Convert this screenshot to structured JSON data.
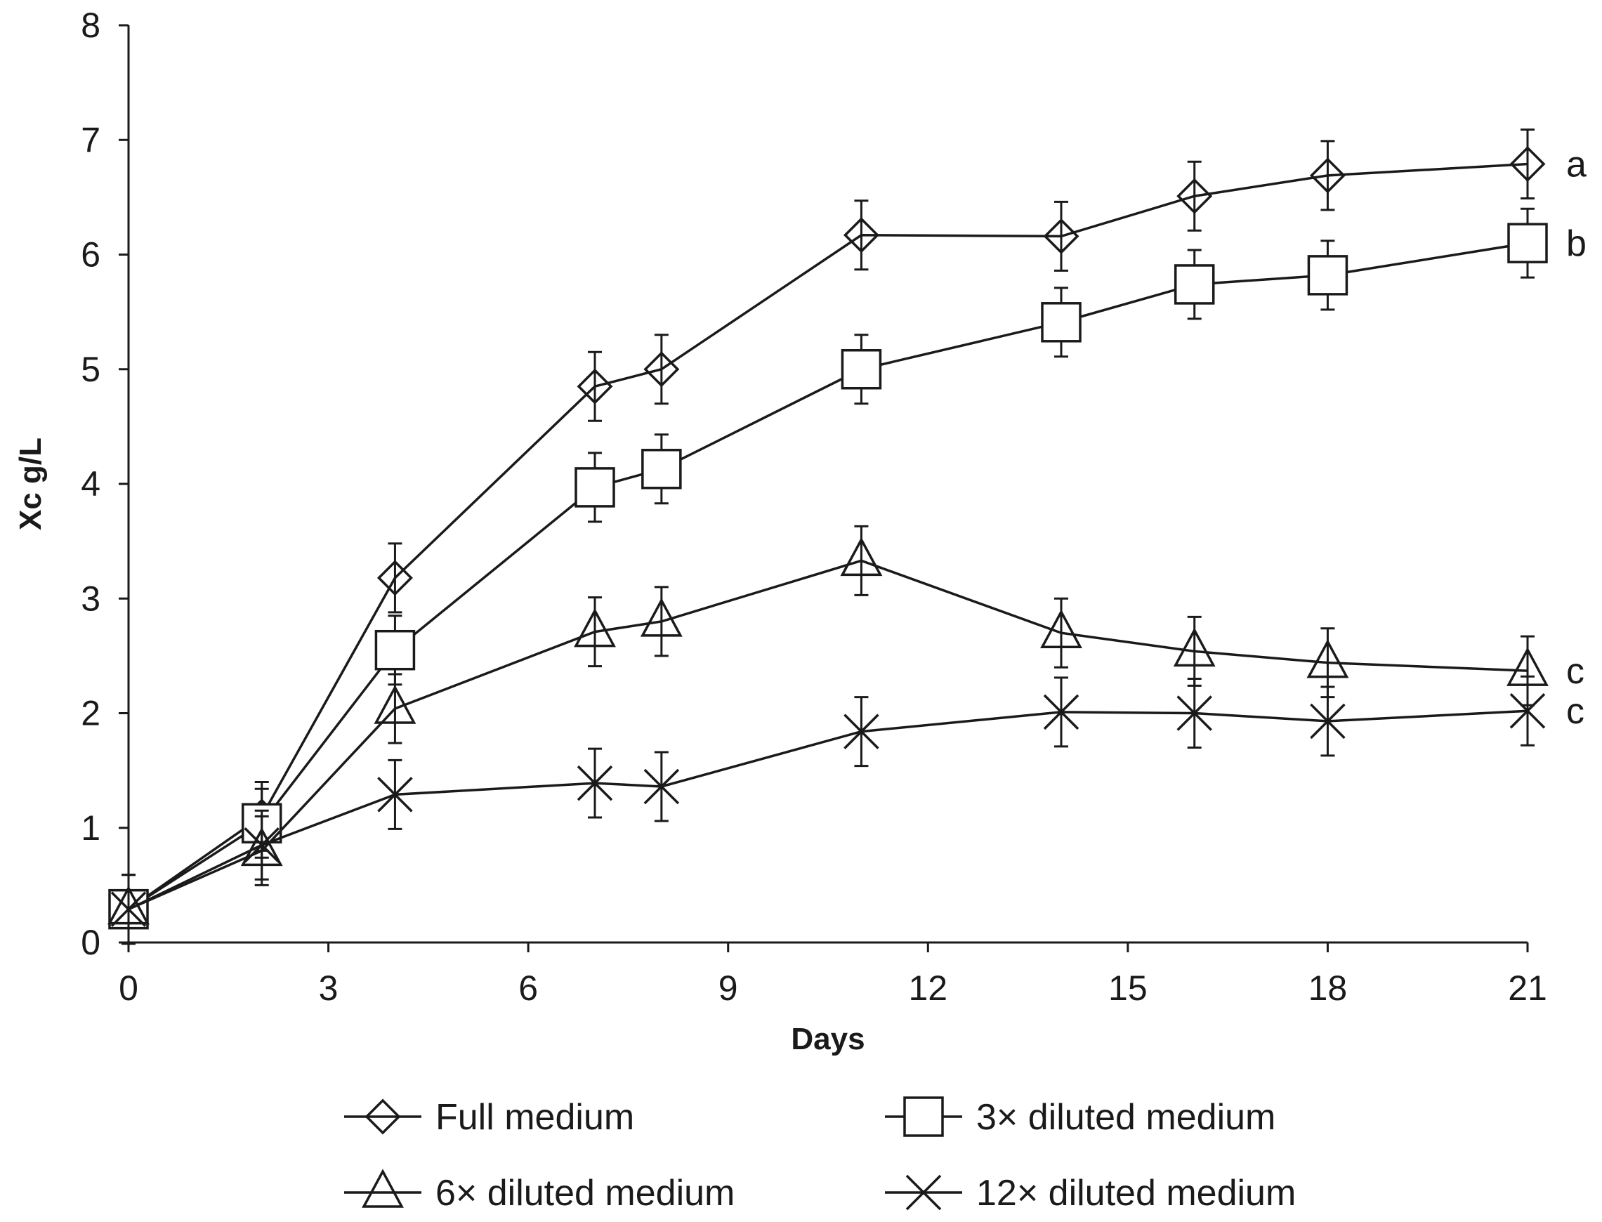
{
  "chart_data": {
    "type": "line",
    "title": "",
    "xlabel": "Days",
    "ylabel": "Xc g/L",
    "xlim": [
      0,
      21
    ],
    "ylim": [
      0,
      8
    ],
    "xticks": [
      0,
      3,
      6,
      9,
      12,
      15,
      18,
      21
    ],
    "yticks": [
      0,
      1,
      2,
      3,
      4,
      5,
      6,
      7,
      8
    ],
    "grid": false,
    "legend_position": "bottom",
    "x": [
      0,
      2,
      4,
      7,
      8,
      11,
      14,
      16,
      18,
      21
    ],
    "series": [
      {
        "name": "Full medium",
        "marker": "diamond",
        "end_label": "a",
        "values": [
          0.29,
          1.1,
          3.18,
          4.85,
          5.0,
          6.17,
          6.16,
          6.51,
          6.69,
          6.79
        ],
        "errors": [
          0.3,
          0.3,
          0.3,
          0.3,
          0.3,
          0.3,
          0.3,
          0.3,
          0.3,
          0.3
        ]
      },
      {
        "name": "3× diluted medium",
        "marker": "square",
        "end_label": "b",
        "values": [
          0.29,
          1.04,
          2.55,
          3.97,
          4.13,
          5.0,
          5.41,
          5.74,
          5.82,
          6.1
        ],
        "errors": [
          0.3,
          0.3,
          0.3,
          0.3,
          0.3,
          0.3,
          0.3,
          0.3,
          0.3,
          0.3
        ]
      },
      {
        "name": "6× diluted medium",
        "marker": "triangle",
        "end_label": "c",
        "values": [
          0.29,
          0.8,
          2.04,
          2.71,
          2.8,
          3.33,
          2.7,
          2.54,
          2.44,
          2.37
        ],
        "errors": [
          0.3,
          0.3,
          0.3,
          0.3,
          0.3,
          0.3,
          0.3,
          0.3,
          0.3,
          0.3
        ]
      },
      {
        "name": "12× diluted medium",
        "marker": "x",
        "end_label": "c",
        "values": [
          0.29,
          0.85,
          1.29,
          1.39,
          1.36,
          1.84,
          2.01,
          2.0,
          1.93,
          2.02
        ],
        "errors": [
          0.3,
          0.3,
          0.3,
          0.3,
          0.3,
          0.3,
          0.3,
          0.3,
          0.3,
          0.3
        ]
      }
    ]
  }
}
